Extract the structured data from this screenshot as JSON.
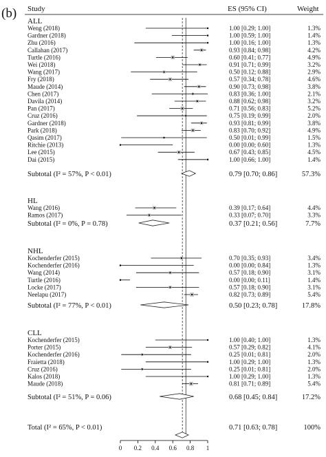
{
  "panel_label": "(b)",
  "header": {
    "study": "Study",
    "es": "ES (95% CI)",
    "weight": "Weight"
  },
  "chart_data": {
    "type": "forest",
    "effect_label": "ES",
    "xlim": [
      0,
      1
    ],
    "x_ticks": [
      "0",
      "0.2",
      "0.4",
      "0.6",
      "0.8",
      "1"
    ],
    "overall_reference": 0.71,
    "null_reference": 0.75,
    "groups": [
      {
        "name": "ALL",
        "studies": [
          {
            "study": "Weng (2018)",
            "es": 1.0,
            "lo": 0.29,
            "hi": 1.0,
            "es_text": "1.00 [0.29; 1.00]",
            "weight": "1.3%"
          },
          {
            "study": "Gardner (2018)",
            "es": 1.0,
            "lo": 0.59,
            "hi": 1.0,
            "es_text": "1.00 [0.59; 1.00]",
            "weight": "1.4%"
          },
          {
            "study": "Zhu (2016)",
            "es": 1.0,
            "lo": 0.16,
            "hi": 1.0,
            "es_text": "1.00 [0.16; 1.00]",
            "weight": "1.3%"
          },
          {
            "study": "Callahan (2017)",
            "es": 0.93,
            "lo": 0.84,
            "hi": 0.98,
            "es_text": "0.93 [0.84; 0.98]",
            "weight": "4.2%"
          },
          {
            "study": "Turtle (2016)",
            "es": 0.6,
            "lo": 0.41,
            "hi": 0.77,
            "es_text": "0.60 [0.41; 0.77]",
            "weight": "4.9%"
          },
          {
            "study": "Wei (2018)",
            "es": 0.91,
            "lo": 0.71,
            "hi": 0.99,
            "es_text": "0.91 [0.71; 0.99]",
            "weight": "3.2%"
          },
          {
            "study": "Wang (2017)",
            "es": 0.5,
            "lo": 0.12,
            "hi": 0.88,
            "es_text": "0.50 [0.12; 0.88]",
            "weight": "2.9%"
          },
          {
            "study": "Fry (2018)",
            "es": 0.57,
            "lo": 0.34,
            "hi": 0.78,
            "es_text": "0.57 [0.34; 0.78]",
            "weight": "4.6%"
          },
          {
            "study": "Maude (2014)",
            "es": 0.9,
            "lo": 0.73,
            "hi": 0.98,
            "es_text": "0.90 [0.73; 0.98]",
            "weight": "3.8%"
          },
          {
            "study": "Chen (2017)",
            "es": 0.83,
            "lo": 0.36,
            "hi": 1.0,
            "es_text": "0.83 [0.36; 1.00]",
            "weight": "2.1%"
          },
          {
            "study": "Davila (2014)",
            "es": 0.88,
            "lo": 0.62,
            "hi": 0.98,
            "es_text": "0.88 [0.62; 0.98]",
            "weight": "3.2%"
          },
          {
            "study": "Pan (2017)",
            "es": 0.71,
            "lo": 0.56,
            "hi": 0.83,
            "es_text": "0.71 [0.56; 0.83]",
            "weight": "5.2%"
          },
          {
            "study": "Cruz (2016)",
            "es": 0.75,
            "lo": 0.19,
            "hi": 0.99,
            "es_text": "0.75 [0.19; 0.99]",
            "weight": "2.0%"
          },
          {
            "study": "Gardner (2018)",
            "es": 0.93,
            "lo": 0.81,
            "hi": 0.99,
            "es_text": "0.93 [0.81; 0.99]",
            "weight": "3.8%"
          },
          {
            "study": "Park (2018)",
            "es": 0.83,
            "lo": 0.7,
            "hi": 0.92,
            "es_text": "0.83 [0.70; 0.92]",
            "weight": "4.9%"
          },
          {
            "study": "Qasim (2017)",
            "es": 0.5,
            "lo": 0.01,
            "hi": 0.99,
            "es_text": "0.50 [0.01; 0.99]",
            "weight": "1.5%"
          },
          {
            "study": "Ritchie (2013)",
            "es": 0.0,
            "lo": 0.0,
            "hi": 0.6,
            "es_text": "0.00 [0.00; 0.60]",
            "weight": "1.3%"
          },
          {
            "study": "Lee (2015)",
            "es": 0.67,
            "lo": 0.43,
            "hi": 0.85,
            "es_text": "0.67 [0.43; 0.85]",
            "weight": "4.5%"
          },
          {
            "study": "Dai (2015)",
            "es": 1.0,
            "lo": 0.66,
            "hi": 1.0,
            "es_text": "1.00 [0.66; 1.00]",
            "weight": "1.4%"
          }
        ],
        "subtotal": {
          "label": "Subtotal (I² = 57%, P < 0.01)",
          "es": 0.79,
          "lo": 0.7,
          "hi": 0.86,
          "es_text": "0.79 [0.70; 0.86]",
          "weight": "57.3%"
        }
      },
      {
        "name": "HL",
        "studies": [
          {
            "study": "Wang (2016)",
            "es": 0.39,
            "lo": 0.17,
            "hi": 0.64,
            "es_text": "0.39 [0.17; 0.64]",
            "weight": "4.4%"
          },
          {
            "study": "Ramos (2017)",
            "es": 0.33,
            "lo": 0.07,
            "hi": 0.7,
            "es_text": "0.33 [0.07; 0.70]",
            "weight": "3.3%"
          }
        ],
        "subtotal": {
          "label": "Subtotal (I² = 0%, P = 0.78)",
          "es": 0.37,
          "lo": 0.21,
          "hi": 0.56,
          "es_text": "0.37 [0.21; 0.56]",
          "weight": "7.7%"
        }
      },
      {
        "name": "NHL",
        "studies": [
          {
            "study": "Kochenderfer (2015)",
            "es": 0.7,
            "lo": 0.35,
            "hi": 0.93,
            "es_text": "0.70 [0.35; 0.93]",
            "weight": "3.4%"
          },
          {
            "study": "Kochenderfer (2016)",
            "es": 0.0,
            "lo": 0.0,
            "hi": 0.84,
            "es_text": "0.00 [0.00; 0.84]",
            "weight": "1.3%"
          },
          {
            "study": "Wang (2014)",
            "es": 0.57,
            "lo": 0.18,
            "hi": 0.9,
            "es_text": "0.57 [0.18; 0.90]",
            "weight": "3.1%"
          },
          {
            "study": "Turtle (2016)",
            "es": 0.0,
            "lo": 0.0,
            "hi": 0.11,
            "es_text": "0.00 [0.00; 0.11]",
            "weight": "1.4%"
          },
          {
            "study": "Locke (2017)",
            "es": 0.57,
            "lo": 0.18,
            "hi": 0.9,
            "es_text": "0.57 [0.18; 0.90]",
            "weight": "3.1%"
          },
          {
            "study": "Neelapu (2017)",
            "es": 0.82,
            "lo": 0.73,
            "hi": 0.89,
            "es_text": "0.82 [0.73; 0.89]",
            "weight": "5.4%"
          }
        ],
        "subtotal": {
          "label": "Subtotal (I² = 77%, P < 0.01)",
          "es": 0.5,
          "lo": 0.23,
          "hi": 0.78,
          "es_text": "0.50 [0.23; 0.78]",
          "weight": "17.8%"
        }
      },
      {
        "name": "CLL",
        "studies": [
          {
            "study": "Kochenderfer (2015)",
            "es": 1.0,
            "lo": 0.4,
            "hi": 1.0,
            "es_text": "1.00 [0.40; 1.00]",
            "weight": "1.3%"
          },
          {
            "study": "Porter (2015)",
            "es": 0.57,
            "lo": 0.29,
            "hi": 0.82,
            "es_text": "0.57 [0.29; 0.82]",
            "weight": "4.1%"
          },
          {
            "study": "Kochenderfer (2016)",
            "es": 0.25,
            "lo": 0.01,
            "hi": 0.81,
            "es_text": "0.25 [0.01; 0.81]",
            "weight": "2.0%"
          },
          {
            "study": "Fraietta (2018)",
            "es": 1.0,
            "lo": 0.29,
            "hi": 1.0,
            "es_text": "1.00 [0.29; 1.00]",
            "weight": "1.3%"
          },
          {
            "study": "Cruz (2016)",
            "es": 0.25,
            "lo": 0.01,
            "hi": 0.81,
            "es_text": "0.25 [0.01; 0.81]",
            "weight": "2.0%"
          },
          {
            "study": "Kalos (2018)",
            "es": 1.0,
            "lo": 0.29,
            "hi": 1.0,
            "es_text": "1.00 [0.29; 1.00]",
            "weight": "1.3%"
          },
          {
            "study": "Maude (2018)",
            "es": 0.81,
            "lo": 0.71,
            "hi": 0.89,
            "es_text": "0.81 [0.71; 0.89]",
            "weight": "5.4%"
          }
        ],
        "subtotal": {
          "label": "Subtotal (I² = 51%, P = 0.06)",
          "es": 0.68,
          "lo": 0.45,
          "hi": 0.84,
          "es_text": "0.68 [0.45; 0.84]",
          "weight": "17.2%"
        }
      }
    ],
    "total": {
      "label": "Total (I² = 65%, P < 0.01)",
      "es": 0.71,
      "lo": 0.63,
      "hi": 0.78,
      "es_text": "0.71 [0.63; 0.78]",
      "weight": "100%"
    }
  }
}
